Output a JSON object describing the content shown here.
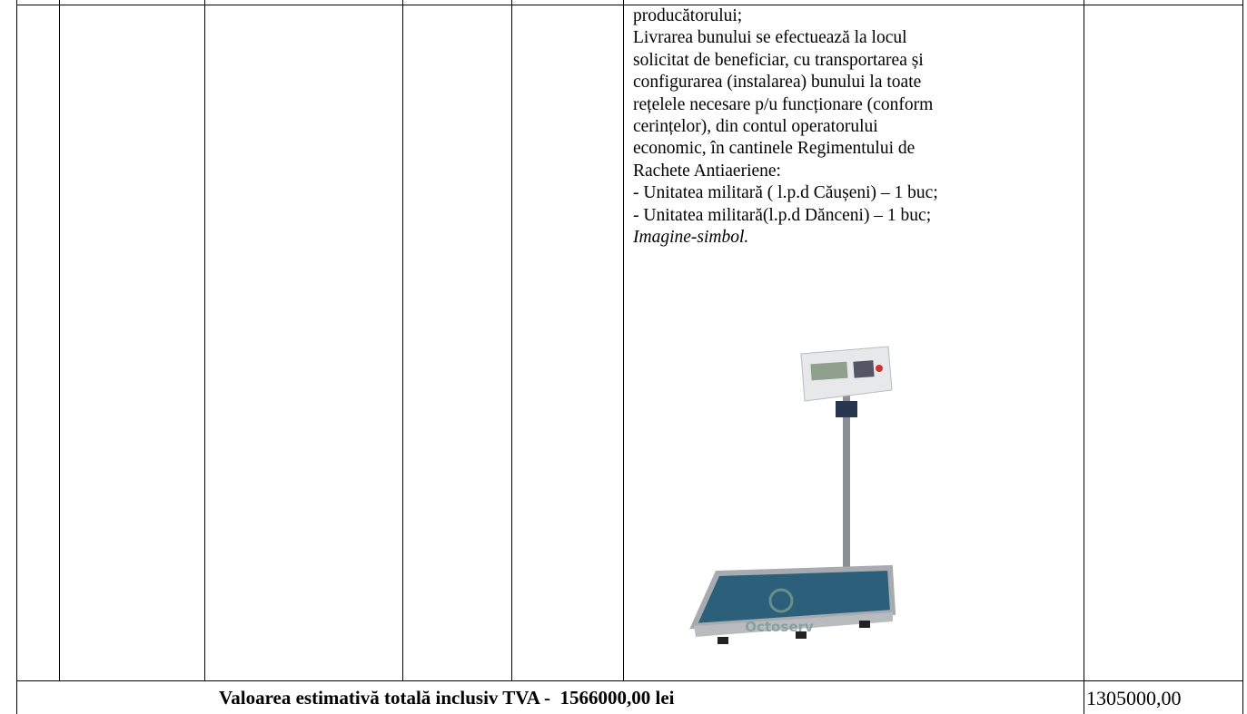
{
  "table": {
    "description_lines": [
      "producătorului;",
      "Livrarea bunului se efectuează la locul",
      "solicitat de beneficiar, cu transportarea și",
      "configurarea (instalarea) bunului la toate",
      "rețelele necesare p/u funcționare (conform",
      "cerințelor), din contul operatorului",
      "economic, în cantinele Regimentului de",
      "Rachete Antiaeriene:",
      "- Unitatea militară ( l.p.d Căușeni) – 1 buc;",
      "- Unitatea militară(l.p.d Dănceni) – 1 buc;"
    ],
    "image_caption": "Imagine-simbol.",
    "image_watermark": "Octoserv",
    "footer": {
      "label": "Valoarea estimativă totală inclusiv TVA -  1566000,00 lei",
      "value": "1305000,00"
    }
  }
}
